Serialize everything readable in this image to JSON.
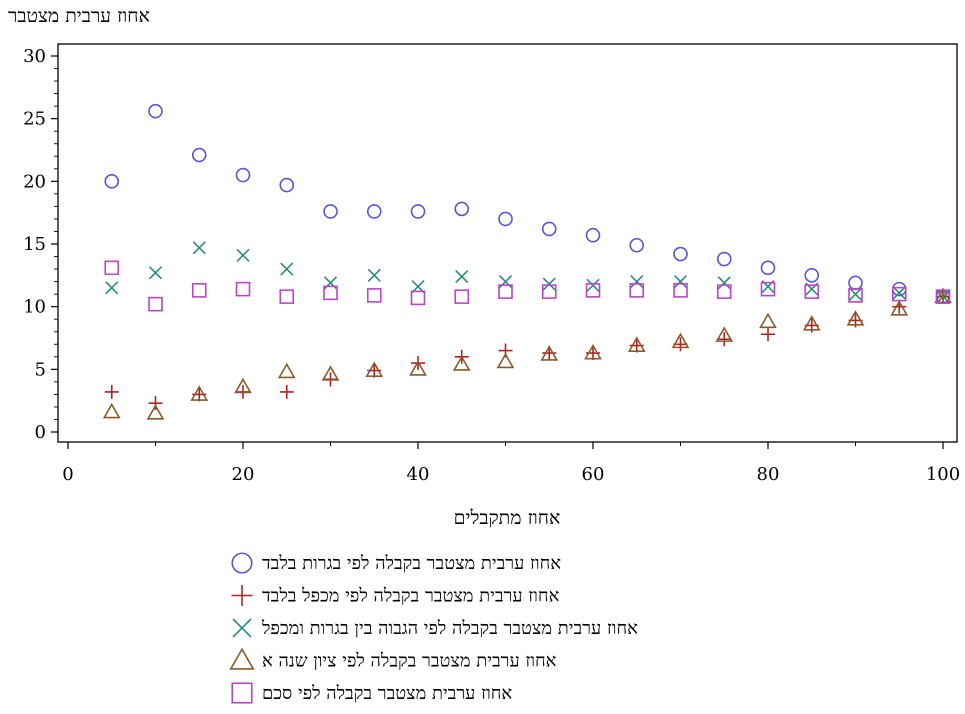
{
  "chart_data": {
    "type": "scatter",
    "title": "",
    "xlabel": "אחוז מתקבלים",
    "ylabel": "אחוז ערבית מצטבר",
    "xlim": [
      0,
      100
    ],
    "ylim": [
      0,
      30
    ],
    "x_ticks": [
      0,
      20,
      40,
      60,
      80,
      100
    ],
    "y_ticks": [
      0,
      5,
      10,
      15,
      20,
      25,
      30
    ],
    "grid": false,
    "legend_position": "bottom",
    "x": [
      5,
      10,
      15,
      20,
      25,
      30,
      35,
      40,
      45,
      50,
      55,
      60,
      65,
      70,
      75,
      80,
      85,
      90,
      95,
      100
    ],
    "series": [
      {
        "name": "אחוז ערבית מצטבר בקבלה לפי בגרות בלבד",
        "marker": "circle",
        "color": "#5555dd",
        "values": [
          20.0,
          25.6,
          22.1,
          20.5,
          19.7,
          17.6,
          17.6,
          17.6,
          17.8,
          17.0,
          16.2,
          15.7,
          14.9,
          14.2,
          13.8,
          13.1,
          12.5,
          11.9,
          11.4,
          10.8
        ]
      },
      {
        "name": "אחוז ערבית מצטבר בקבלה לפי מכפל בלבד",
        "marker": "plus",
        "color": "#b22222",
        "values": [
          3.2,
          2.3,
          3.0,
          3.2,
          3.2,
          4.2,
          4.9,
          5.5,
          6.0,
          6.5,
          6.3,
          6.3,
          6.9,
          7.0,
          7.4,
          7.8,
          8.5,
          8.9,
          10.0,
          10.8
        ]
      },
      {
        "name": "אחוז ערבית מצטבר בקבלה לפי הגבוה בין בגרות ומכפל",
        "marker": "x",
        "color": "#2e8b7a",
        "values": [
          11.5,
          12.7,
          14.7,
          14.1,
          13.0,
          11.9,
          12.5,
          11.6,
          12.4,
          12.0,
          11.8,
          11.7,
          12.0,
          12.0,
          11.9,
          11.6,
          11.4,
          11.0,
          11.1,
          10.8
        ]
      },
      {
        "name": "אחוז ערבית מצטבר בקבלה לפי ציון שנה א",
        "marker": "triangle",
        "color": "#8b5a2b",
        "values": [
          1.6,
          1.5,
          3.0,
          3.6,
          4.8,
          4.6,
          4.9,
          5.0,
          5.4,
          5.6,
          6.2,
          6.3,
          6.9,
          7.2,
          7.7,
          8.8,
          8.6,
          9.0,
          9.8,
          10.8
        ]
      },
      {
        "name": "אחוז ערבית מצטבר בקבלה לפי סכם",
        "marker": "square",
        "color": "#bb44cc",
        "values": [
          13.1,
          10.2,
          11.3,
          11.4,
          10.8,
          11.1,
          10.9,
          10.7,
          10.8,
          11.2,
          11.2,
          11.3,
          11.3,
          11.3,
          11.2,
          11.4,
          11.2,
          10.9,
          11.0,
          10.8
        ]
      }
    ]
  }
}
